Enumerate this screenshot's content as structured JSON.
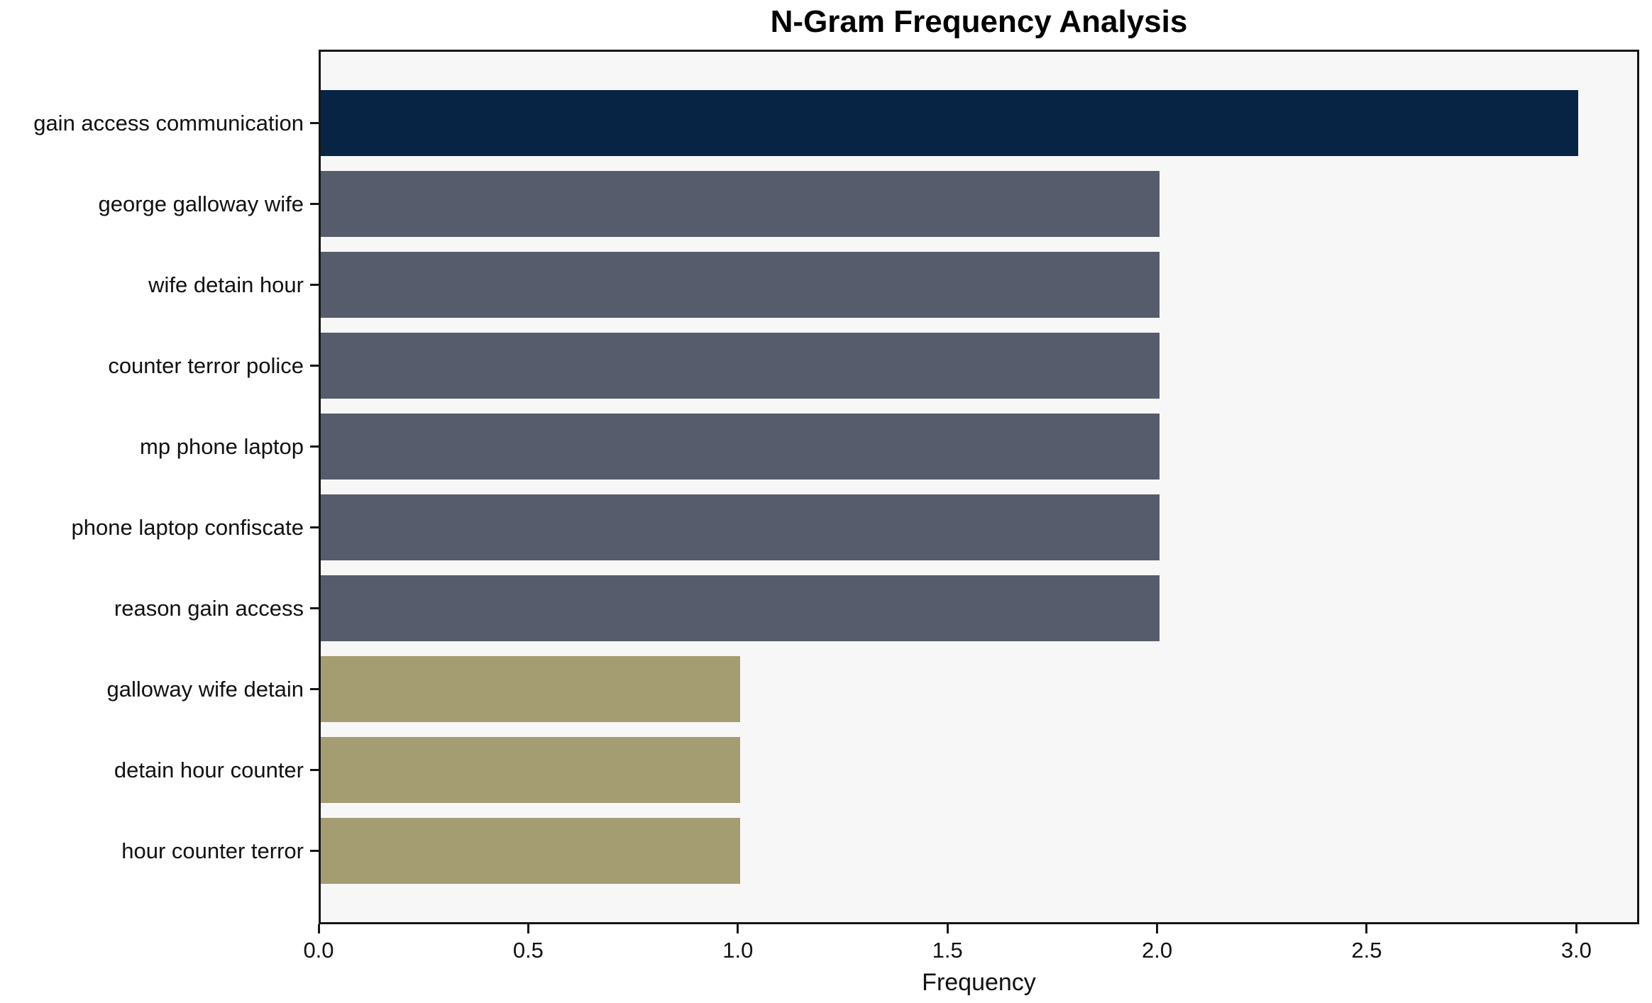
{
  "chart_data": {
    "type": "bar",
    "orientation": "horizontal",
    "title": "N-Gram Frequency Analysis",
    "xlabel": "Frequency",
    "ylabel": "",
    "categories": [
      "gain access communication",
      "george galloway wife",
      "wife detain hour",
      "counter terror police",
      "mp phone laptop",
      "phone laptop confiscate",
      "reason gain access",
      "galloway wife detain",
      "detain hour counter",
      "hour counter terror"
    ],
    "values": [
      3,
      2,
      2,
      2,
      2,
      2,
      2,
      1,
      1,
      1
    ],
    "bar_colors": [
      "#082444",
      "#565c6b",
      "#565c6b",
      "#565c6b",
      "#565c6b",
      "#565c6b",
      "#565c6b",
      "#a59d72",
      "#a59d72",
      "#a59d72"
    ],
    "xlim": [
      0,
      3.15
    ],
    "xticks": [
      0.0,
      0.5,
      1.0,
      1.5,
      2.0,
      2.5,
      3.0
    ],
    "xtick_labels": [
      "0.0",
      "0.5",
      "1.0",
      "1.5",
      "2.0",
      "2.5",
      "3.0"
    ],
    "grid": false,
    "legend": null,
    "plot_background": "#f7f7f7",
    "figure_background": "#ffffff",
    "spine_color": "#161616"
  }
}
